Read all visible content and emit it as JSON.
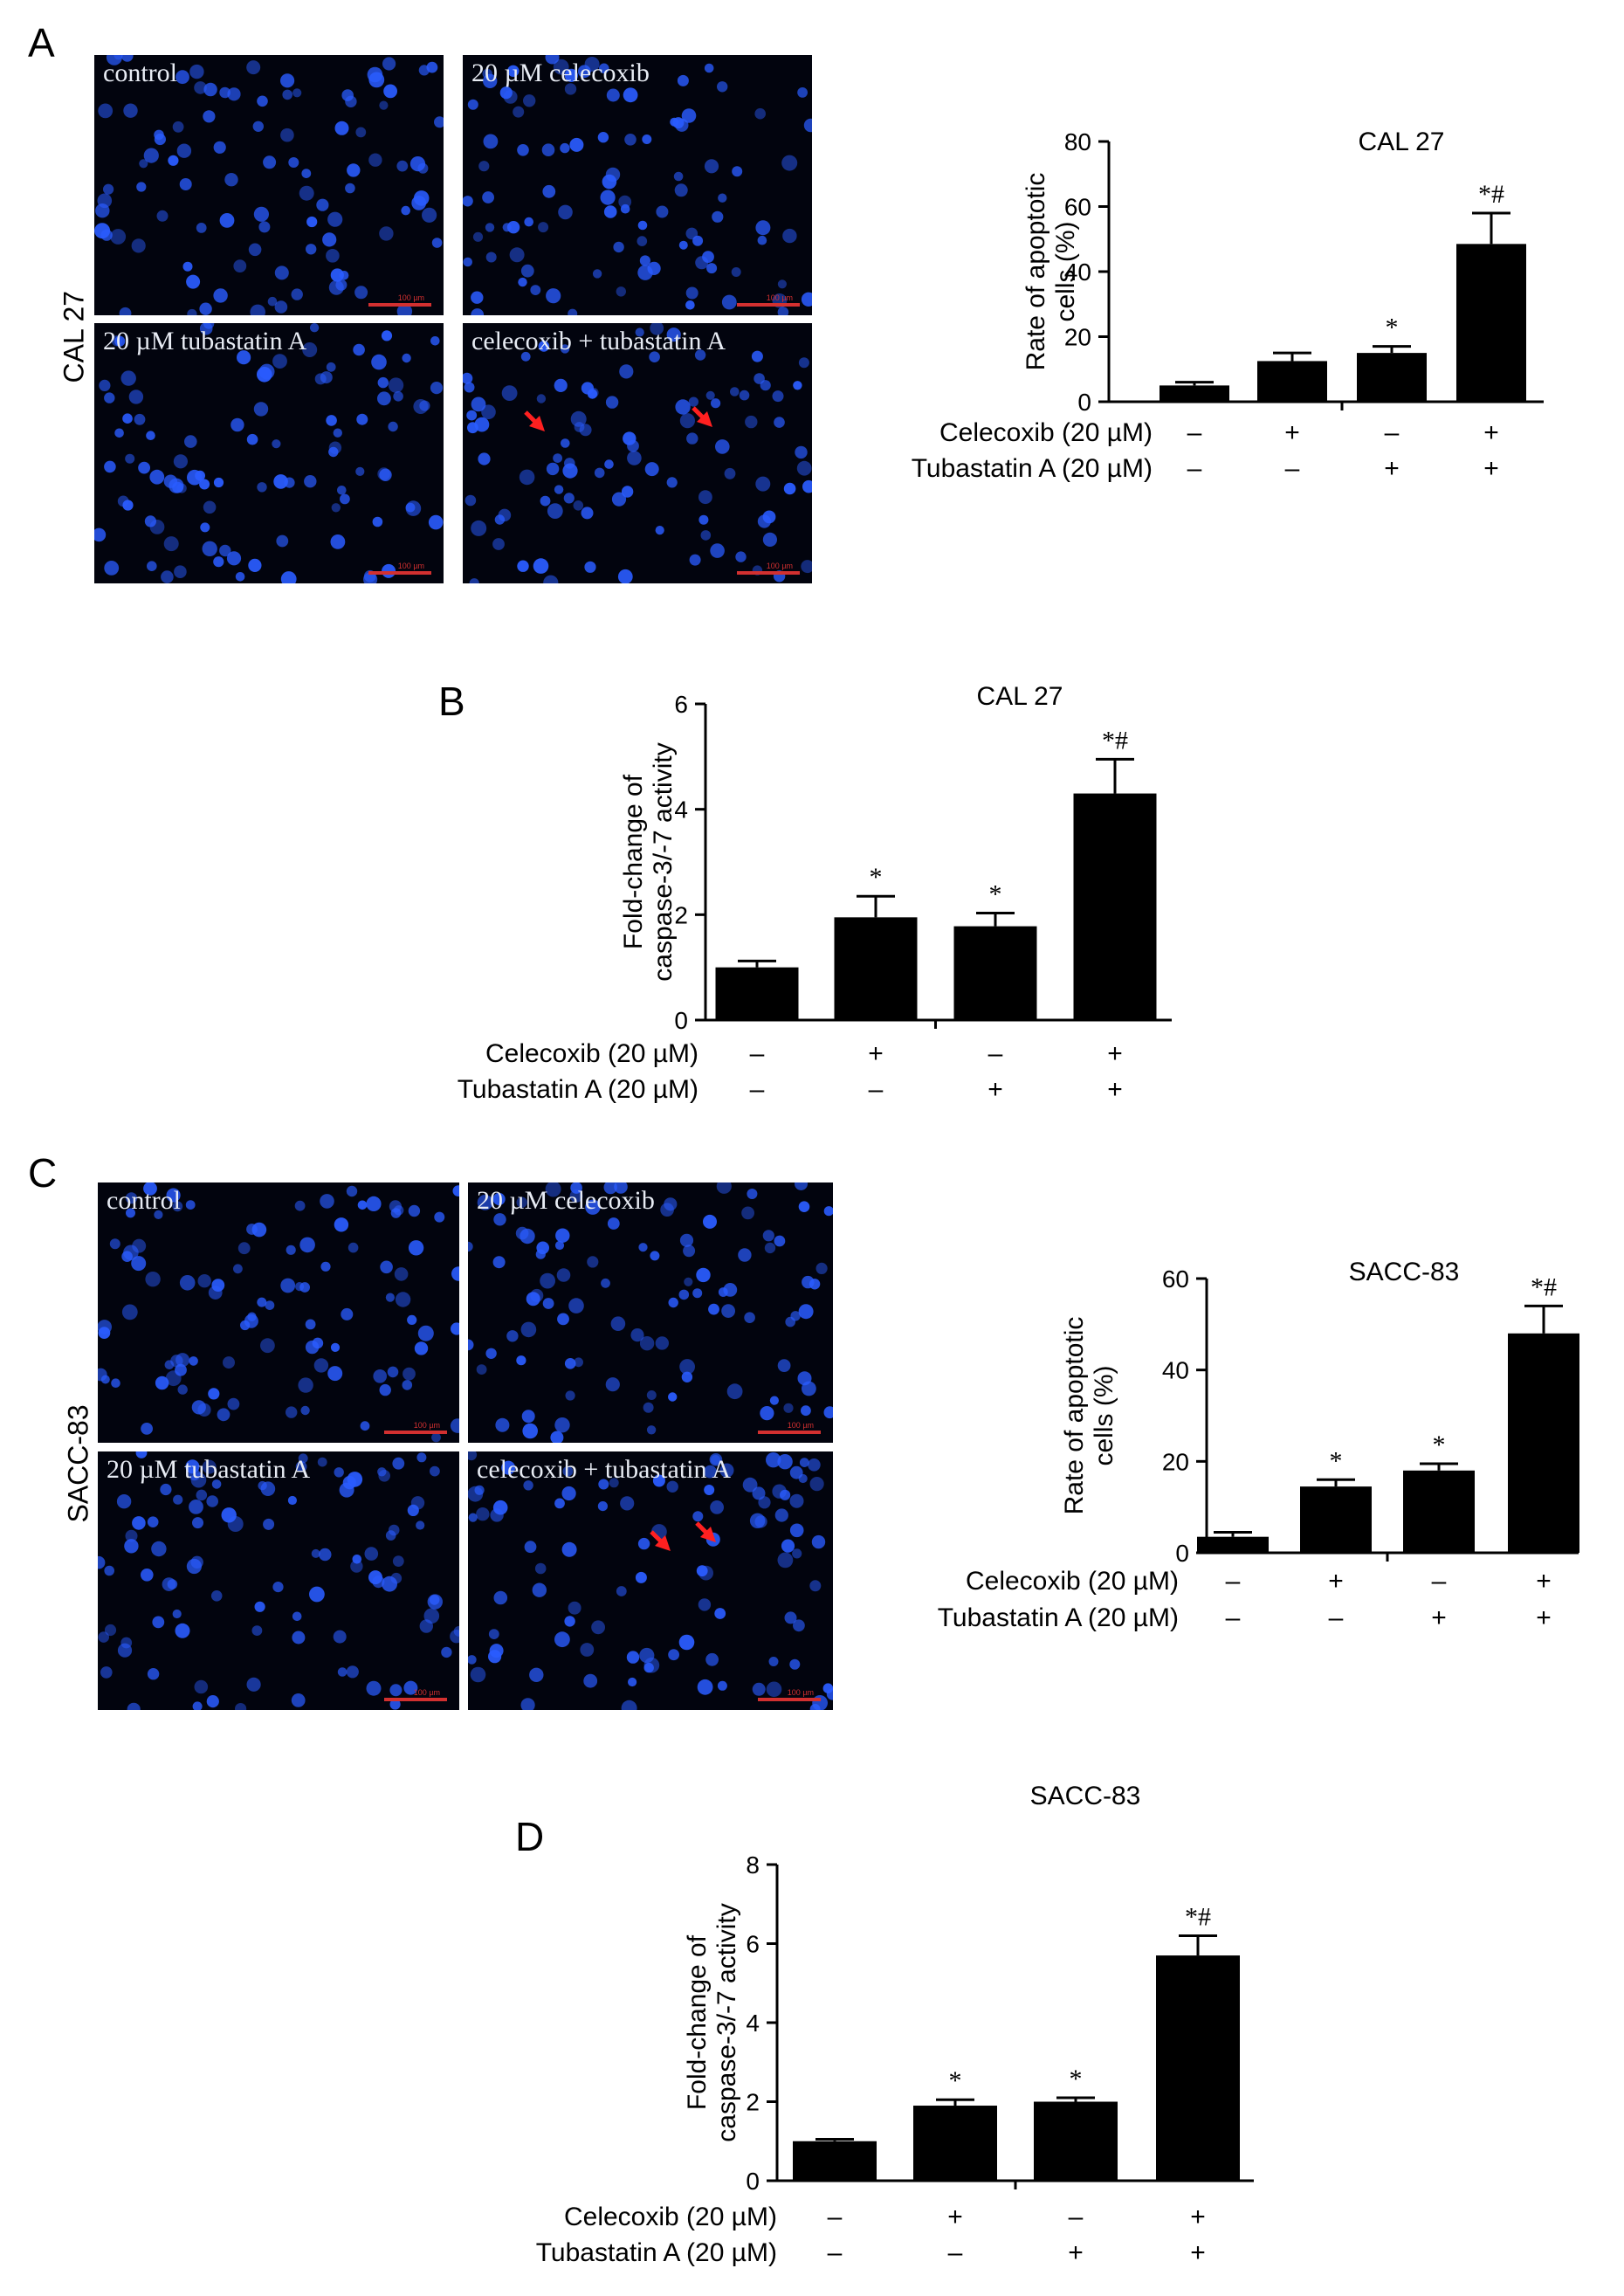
{
  "panels": {
    "A": {
      "letter": "A",
      "cell_line": "CAL 27",
      "images": [
        "control",
        "20 µM celecoxib",
        "20 µM tubastatin A",
        "celecoxib + tubastatin A"
      ],
      "scale_text": "100 µm"
    },
    "B": {
      "letter": "B"
    },
    "C": {
      "letter": "C",
      "cell_line": "SACC-83",
      "images": [
        "control",
        "20 µM celecoxib",
        "20 µM tubastatin A",
        "celecoxib + tubastatin A"
      ],
      "scale_text": "100 µm"
    },
    "D": {
      "letter": "D"
    }
  },
  "treatment_rows": {
    "celecoxib_label": "Celecoxib (20 µM)",
    "tubastatin_label": "Tubastatin A (20 µM)",
    "celecoxib_signs": [
      "–",
      "+",
      "–",
      "+"
    ],
    "tubastatin_signs": [
      "–",
      "–",
      "+",
      "+"
    ]
  },
  "colors": {
    "bar": "#000000",
    "micro_bg": "#02040e",
    "nuclei": "#2a5cff",
    "arrow": "#ff2020",
    "scalebar": "#d23030"
  },
  "chart_data": [
    {
      "id": "A",
      "type": "bar",
      "title": "CAL 27",
      "ylabel": [
        "Rate of apoptotic",
        "cells (%)"
      ],
      "ylim": [
        0,
        80
      ],
      "yticks": [
        0,
        20,
        40,
        60,
        80
      ],
      "values": [
        5,
        12.5,
        15,
        48.5
      ],
      "errors": [
        1,
        2.5,
        2,
        9.5
      ],
      "annotations": [
        "",
        "",
        "*",
        "*#"
      ]
    },
    {
      "id": "B",
      "type": "bar",
      "title": "CAL 27",
      "ylabel": [
        "Fold-change of",
        "caspase-3/-7 activity"
      ],
      "ylim": [
        0,
        6
      ],
      "yticks": [
        0,
        2,
        4,
        6
      ],
      "values": [
        1.0,
        1.95,
        1.78,
        4.3
      ],
      "errors": [
        0.12,
        0.4,
        0.25,
        0.65
      ],
      "annotations": [
        "",
        "*",
        "*",
        "*#"
      ]
    },
    {
      "id": "C",
      "type": "bar",
      "title": "SACC-83",
      "ylabel": [
        "Rate of apoptotic",
        "cells (%)"
      ],
      "ylim": [
        0,
        60
      ],
      "yticks": [
        0,
        20,
        40,
        60
      ],
      "values": [
        3.5,
        14.5,
        18,
        48
      ],
      "errors": [
        1,
        1.5,
        1.5,
        6
      ],
      "annotations": [
        "",
        "*",
        "*",
        "*#"
      ]
    },
    {
      "id": "D",
      "type": "bar",
      "title": "SACC-83",
      "ylabel": [
        "Fold-change of",
        "caspase-3/-7 activity"
      ],
      "ylim": [
        0,
        8
      ],
      "yticks": [
        0,
        2,
        4,
        6,
        8
      ],
      "values": [
        1.0,
        1.9,
        2.0,
        5.7
      ],
      "errors": [
        0.05,
        0.15,
        0.1,
        0.5
      ],
      "annotations": [
        "",
        "*",
        "*",
        "*#"
      ]
    }
  ]
}
